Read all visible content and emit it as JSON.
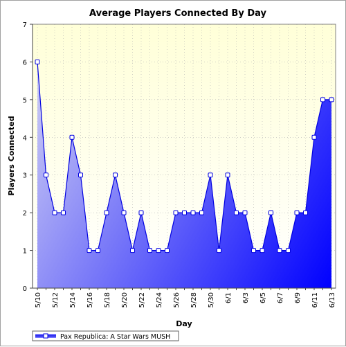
{
  "chart_data": {
    "type": "area",
    "title": "Average Players Connected By Day",
    "xlabel": "Day",
    "ylabel": "Players Connected",
    "ylim": [
      0,
      7
    ],
    "yticks": [
      "0",
      "1",
      "2",
      "3",
      "4",
      "5",
      "6",
      "7"
    ],
    "categories": [
      "5/10",
      "5/11",
      "5/12",
      "5/13",
      "5/14",
      "5/15",
      "5/16",
      "5/17",
      "5/18",
      "5/19",
      "5/20",
      "5/21",
      "5/22",
      "5/23",
      "5/24",
      "5/25",
      "5/26",
      "5/27",
      "5/28",
      "5/29",
      "5/30",
      "5/31",
      "6/1",
      "6/2",
      "6/3",
      "6/4",
      "6/5",
      "6/6",
      "6/7",
      "6/8",
      "6/9",
      "6/10",
      "6/11",
      "6/12",
      "6/13"
    ],
    "xtick_labels": [
      "5/10",
      "5/12",
      "5/14",
      "5/16",
      "5/18",
      "5/20",
      "5/22",
      "5/24",
      "5/26",
      "5/28",
      "5/30",
      "6/1",
      "6/3",
      "6/5",
      "6/7",
      "6/9",
      "6/11",
      "6/13"
    ],
    "series": [
      {
        "name": "Pax Republica: A Star Wars MUSH",
        "values": [
          6,
          3,
          2,
          2,
          4,
          3,
          1,
          1,
          2,
          3,
          2,
          1,
          2,
          1,
          1,
          1,
          2,
          2,
          2,
          2,
          3,
          1,
          3,
          2,
          2,
          1,
          1,
          2,
          1,
          1,
          2,
          2,
          4,
          5,
          5
        ]
      }
    ],
    "grid": true,
    "legend": "bottom-left",
    "colors": {
      "line": "#0000e0",
      "fill_light": "#c8c8f4",
      "fill_dark": "#0000ff",
      "plot_bg_top": "#ffffd8",
      "plot_bg_bottom": "#ffffff",
      "grid": "#b4b4b4",
      "marker_fill": "#ffffff"
    }
  }
}
